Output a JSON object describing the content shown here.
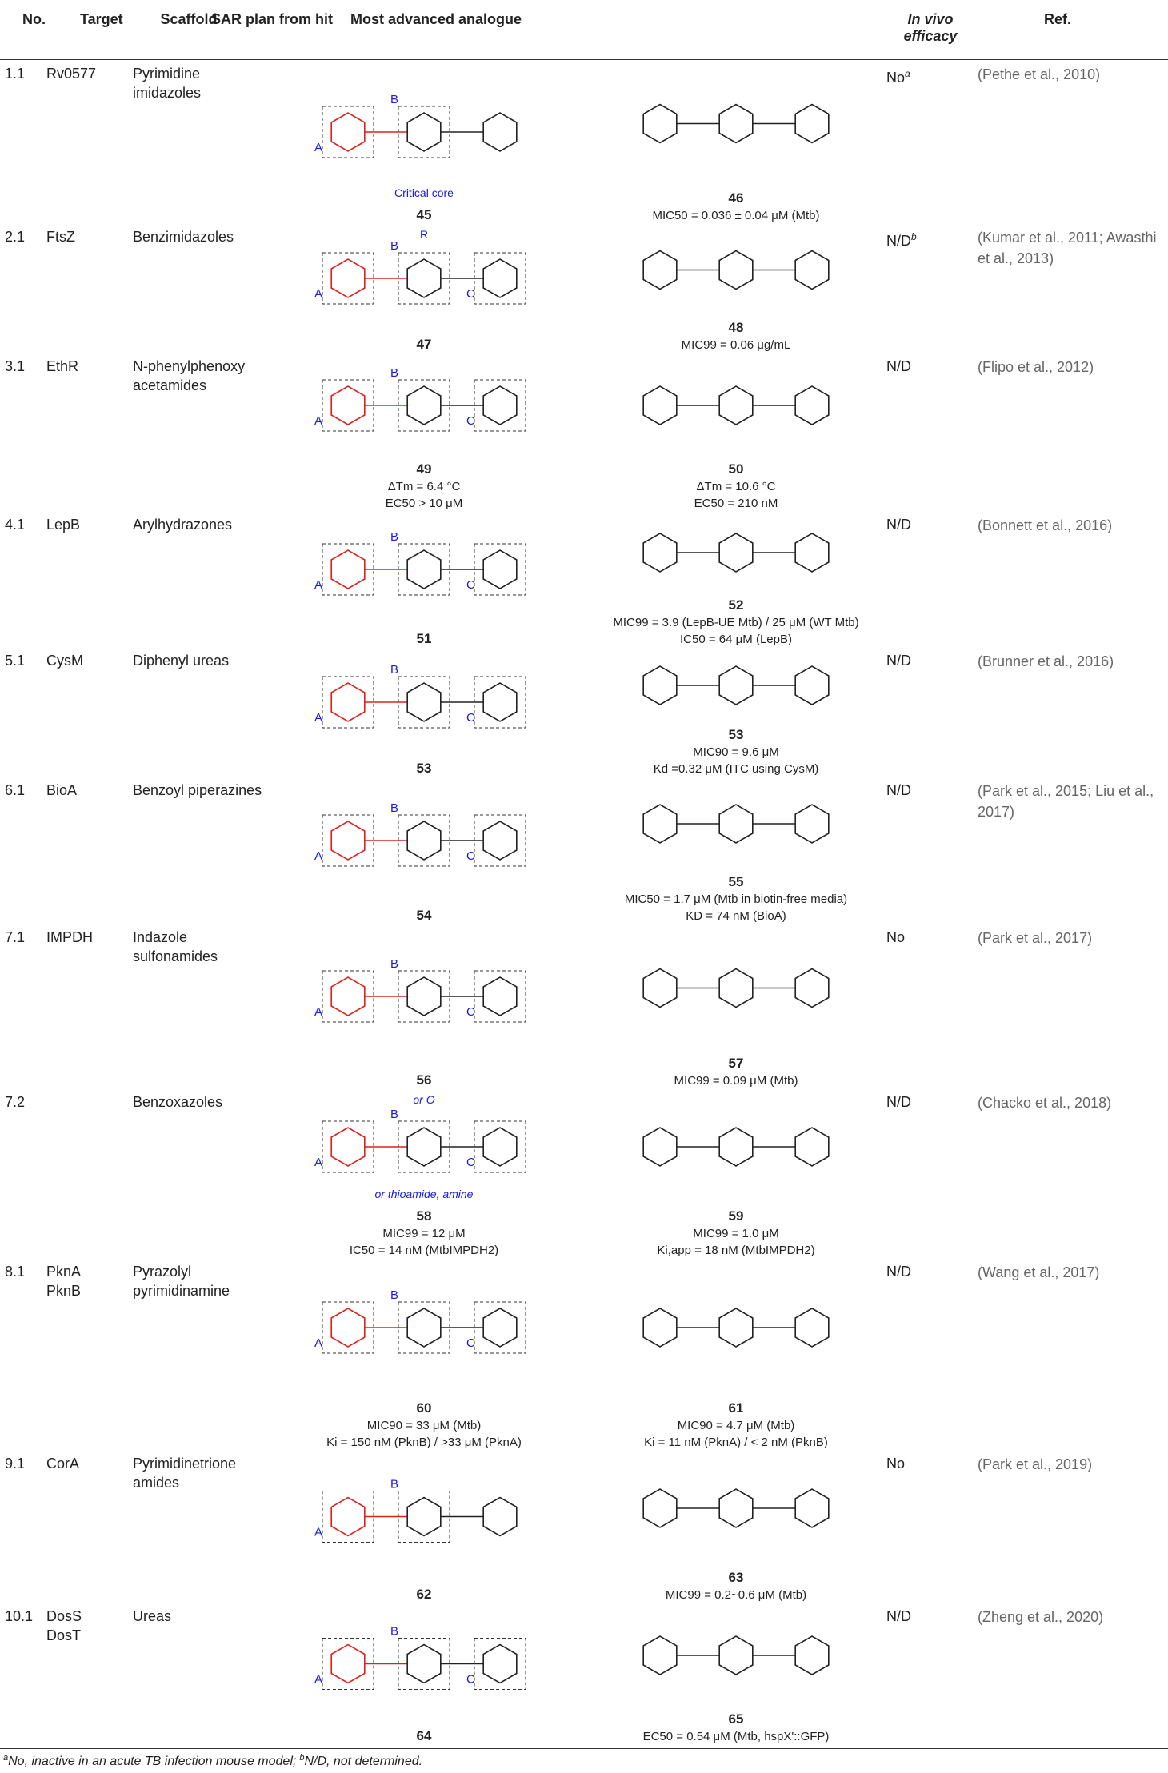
{
  "table": {
    "header": [
      "No.",
      "Target",
      "Scaffold",
      "SAR plan from hit",
      "Most advanced analogue",
      "In vivo efficacy",
      "Ref."
    ],
    "rows": [
      {
        "no": "1.1",
        "target": "Rv0577",
        "scaffold": "Pyrimidine imidazoles",
        "hit": {
          "compound": "45",
          "labels": [
            "A",
            "B",
            "Critical core"
          ],
          "notes": []
        },
        "analogue": {
          "compound": "46",
          "notes": [
            "MIC50 = 0.036 ± 0.04 μM (Mtb)"
          ]
        },
        "in_vivo": "No",
        "in_vivo_sup": "a",
        "ref": "(Pethe et al., 2010)"
      },
      {
        "no": "2.1",
        "target": "FtsZ",
        "scaffold": "Benzimidazoles",
        "hit": {
          "compound": "47",
          "labels": [
            "A",
            "B",
            "C",
            "R"
          ],
          "notes": []
        },
        "analogue": {
          "compound": "48",
          "notes": [
            "MIC99 = 0.06 μg/mL"
          ]
        },
        "in_vivo": "N/D",
        "in_vivo_sup": "b",
        "ref": "(Kumar et al., 2011; Awasthi et al., 2013)"
      },
      {
        "no": "3.1",
        "target": "EthR",
        "scaffold": "N-phenylphenoxy acetamides",
        "hit": {
          "compound": "49",
          "labels": [
            "A",
            "B",
            "C"
          ],
          "notes": [
            "ΔTm = 6.4 °C",
            "EC50 > 10 μM"
          ]
        },
        "analogue": {
          "compound": "50",
          "notes": [
            "ΔTm = 10.6 °C",
            "EC50 = 210 nM"
          ]
        },
        "in_vivo": "N/D",
        "ref": "(Flipo et al., 2012)"
      },
      {
        "no": "4.1",
        "target": "LepB",
        "scaffold": "Arylhydrazones",
        "hit": {
          "compound": "51",
          "labels": [
            "A",
            "B",
            "C"
          ],
          "notes": []
        },
        "analogue": {
          "compound": "52",
          "notes": [
            "MIC99 = 3.9 (LepB-UE Mtb) / 25 μM (WT Mtb)",
            "IC50 = 64 μM (LepB)"
          ]
        },
        "in_vivo": "N/D",
        "ref": "(Bonnett et al., 2016)"
      },
      {
        "no": "5.1",
        "target": "CysM",
        "scaffold": "Diphenyl ureas",
        "hit": {
          "compound": "53",
          "labels": [
            "A",
            "B",
            "C"
          ],
          "notes": []
        },
        "analogue": {
          "compound": "53",
          "notes": [
            "MIC90 = 9.6 μM",
            "Kd =0.32 μM (ITC using CysM)"
          ]
        },
        "in_vivo": "N/D",
        "ref": "(Brunner et al., 2016)"
      },
      {
        "no": "6.1",
        "target": "BioA",
        "scaffold": "Benzoyl piperazines",
        "hit": {
          "compound": "54",
          "labels": [
            "A",
            "B",
            "C"
          ],
          "notes": []
        },
        "analogue": {
          "compound": "55",
          "notes": [
            "MIC50 = 1.7 μM (Mtb in biotin-free media)",
            "KD = 74 nM (BioA)"
          ]
        },
        "in_vivo": "N/D",
        "ref": "(Park et al., 2015; Liu et al., 2017)"
      },
      {
        "no": "7.1",
        "target": "IMPDH",
        "scaffold": "Indazole sulfonamides",
        "hit": {
          "compound": "56",
          "labels": [
            "A",
            "B",
            "C"
          ],
          "notes": []
        },
        "analogue": {
          "compound": "57",
          "notes": [
            "MIC99 = 0.09 μM (Mtb)"
          ]
        },
        "in_vivo": "No",
        "ref": "(Park et al., 2017)"
      },
      {
        "no": "7.2",
        "target": null,
        "scaffold": "Benzoxazoles",
        "hit": {
          "compound": "58",
          "labels": [
            "A",
            "B",
            "C",
            "or O",
            "or thioamide, amine"
          ],
          "notes": [
            "MIC99 = 12 μM",
            "IC50 = 14 nM (MtbIMPDH2)"
          ]
        },
        "analogue": {
          "compound": "59",
          "notes": [
            "MIC99 = 1.0 μM",
            "Ki,app = 18 nM (MtbIMPDH2)"
          ]
        },
        "in_vivo": "N/D",
        "ref": "(Chacko et al., 2018)"
      },
      {
        "no": "8.1",
        "target": "PknA\nPknB",
        "scaffold": "Pyrazolyl pyrimidinamine",
        "hit": {
          "compound": "60",
          "labels": [
            "A",
            "B",
            "C"
          ],
          "notes": [
            "MIC90 = 33 μM (Mtb)",
            "Ki = 150 nM (PknB) / >33 μM (PknA)"
          ]
        },
        "analogue": {
          "compound": "61",
          "notes": [
            "MIC90 = 4.7 μM (Mtb)",
            "Ki = 11 nM (PknA) / < 2 nM (PknB)"
          ]
        },
        "in_vivo": "N/D",
        "ref": "(Wang et al., 2017)"
      },
      {
        "no": "9.1",
        "target": "CorA",
        "scaffold": "Pyrimidinetrione amides",
        "hit": {
          "compound": "62",
          "labels": [
            "A",
            "B"
          ],
          "notes": []
        },
        "analogue": {
          "compound": "63",
          "notes": [
            "MIC99 = 0.2~0.6 μM (Mtb)"
          ]
        },
        "in_vivo": "No",
        "ref": "(Park et al., 2019)"
      },
      {
        "no": "10.1",
        "target": "DosS\nDosT",
        "scaffold": "Ureas",
        "hit": {
          "compound": "64",
          "labels": [
            "A",
            "B",
            "C"
          ],
          "notes": []
        },
        "analogue": {
          "compound": "65",
          "notes": [
            "EC50 = 0.54 μM (Mtb, hspX'::GFP)"
          ]
        },
        "in_vivo": "N/D",
        "ref": "(Zheng et al., 2020)"
      }
    ],
    "footnote": [
      {
        "sup": "a",
        "text": "No, inactive in an acute TB infection mouse model;"
      },
      {
        "sup": "b",
        "text": "N/D, not determined."
      }
    ]
  }
}
